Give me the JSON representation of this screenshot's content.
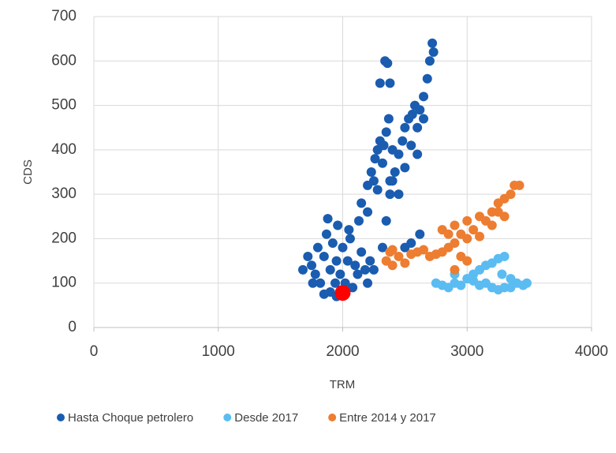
{
  "chart_data": {
    "type": "scatter",
    "xlabel": "TRM",
    "ylabel": "CDS",
    "xlim": [
      0,
      4000
    ],
    "xticks": [
      0,
      1000,
      2000,
      3000,
      4000
    ],
    "ylim": [
      0,
      700
    ],
    "yticks": [
      0,
      100,
      200,
      300,
      400,
      500,
      600,
      700
    ],
    "grid": true,
    "legend": "bottom",
    "series": [
      {
        "name": "Hasta Choque petrolero",
        "color": "#1a5cb0",
        "x": [
          1680,
          1720,
          1750,
          1780,
          1800,
          1820,
          1850,
          1870,
          1880,
          1900,
          1900,
          1920,
          1940,
          1950,
          1960,
          1980,
          2000,
          2020,
          2040,
          2060,
          2080,
          2100,
          2120,
          2150,
          2180,
          2200,
          2220,
          2250,
          1760,
          1850,
          1950,
          2050,
          2130,
          2200,
          2150,
          2200,
          2230,
          2260,
          2280,
          2300,
          2330,
          2350,
          2370,
          2400,
          2320,
          2280,
          2250,
          2380,
          2320,
          2350,
          2380,
          2400,
          2420,
          2450,
          2480,
          2500,
          2530,
          2560,
          2580,
          2600,
          2620,
          2650,
          2680,
          2700,
          2720,
          2730,
          2650,
          2550,
          2600,
          2500,
          2450,
          2500,
          2550,
          2620,
          2340,
          2360,
          2300,
          2380
        ],
        "values": [
          130,
          160,
          140,
          120,
          180,
          100,
          160,
          210,
          245,
          80,
          130,
          190,
          100,
          150,
          230,
          120,
          180,
          100,
          150,
          200,
          90,
          140,
          120,
          170,
          130,
          100,
          150,
          130,
          100,
          75,
          70,
          220,
          240,
          260,
          280,
          320,
          350,
          380,
          400,
          420,
          410,
          440,
          470,
          400,
          370,
          310,
          330,
          330,
          180,
          240,
          300,
          330,
          350,
          390,
          420,
          450,
          470,
          480,
          500,
          450,
          490,
          520,
          560,
          600,
          640,
          620,
          470,
          410,
          390,
          360,
          300,
          180,
          190,
          210,
          600,
          595,
          550,
          550
        ]
      },
      {
        "name": "Desde 2017",
        "color": "#5bbcf2",
        "x": [
          2750,
          2800,
          2850,
          2900,
          2950,
          3000,
          3050,
          3100,
          3150,
          3200,
          3250,
          3300,
          3150,
          3200,
          3250,
          3300,
          3350,
          3400,
          3450,
          3480,
          3100,
          3050,
          2900,
          3280,
          3350
        ],
        "values": [
          100,
          95,
          90,
          100,
          95,
          110,
          120,
          130,
          140,
          145,
          155,
          160,
          100,
          90,
          85,
          90,
          110,
          100,
          95,
          100,
          95,
          105,
          120,
          120,
          90
        ]
      },
      {
        "name": "Entre 2014 y 2017",
        "color": "#ed7d31",
        "x": [
          2350,
          2380,
          2400,
          2450,
          2500,
          2550,
          2600,
          2650,
          2700,
          2750,
          2800,
          2850,
          2800,
          2850,
          2900,
          2900,
          2950,
          3000,
          3000,
          3050,
          3100,
          3150,
          3200,
          3200,
          3250,
          3300,
          3350,
          3380,
          3420,
          3300,
          3100,
          2950,
          3000,
          2900,
          2400,
          3250
        ],
        "values": [
          150,
          170,
          140,
          160,
          145,
          165,
          170,
          175,
          160,
          165,
          170,
          180,
          220,
          210,
          230,
          190,
          210,
          200,
          240,
          220,
          250,
          240,
          230,
          260,
          280,
          290,
          300,
          320,
          320,
          250,
          205,
          160,
          150,
          130,
          175,
          260
        ]
      },
      {
        "color": "#ff0000",
        "x": [
          2000
        ],
        "values": [
          78
        ]
      }
    ]
  }
}
